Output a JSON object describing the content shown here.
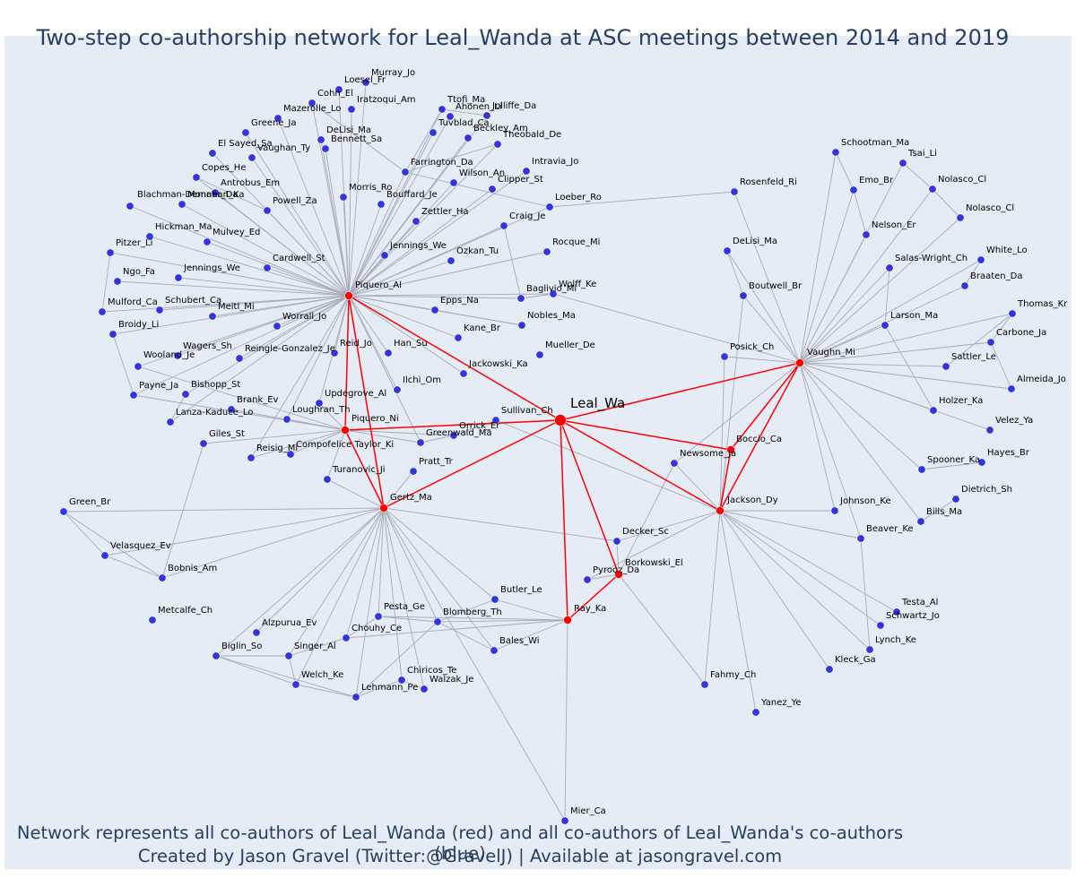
{
  "title": "Two-step co-authorship network for Leal_Wanda at ASC meetings between 2014 and 2019",
  "caption": {
    "line1": "Network represents all co-authors of Leal_Wanda (red) and all co-authors of Leal_Wanda's co-authors (blue)",
    "line2": "Created by Jason Gravel (Twitter:@GravelJ) | Available at jasongravel.com"
  },
  "colors": {
    "background": "#e5ecf6",
    "first_degree": "#ff0000",
    "second_degree": "#3333e0",
    "ego_edge": "#ff0000",
    "other_edge": "#a8aab8",
    "text": "#2a3f5f"
  },
  "network": {
    "ego": "Leal_Wa",
    "first_degree": [
      "Piquero_Al",
      "Piquero_Ni",
      "Gertz_Ma",
      "Vaughn_Mi",
      "Jackson_Dy",
      "Boccio_Ca",
      "Borkowski_El",
      "Ray_Ka"
    ],
    "nodes": [
      {
        "name": "Leal_Wa",
        "group": "ego"
      },
      {
        "name": "Piquero_Al",
        "group": "red"
      },
      {
        "name": "Piquero_Ni",
        "group": "red"
      },
      {
        "name": "Gertz_Ma",
        "group": "red"
      },
      {
        "name": "Vaughn_Mi",
        "group": "red"
      },
      {
        "name": "Jackson_Dy",
        "group": "red"
      },
      {
        "name": "Boccio_Ca",
        "group": "red"
      },
      {
        "name": "Borkowski_El",
        "group": "red"
      },
      {
        "name": "Ray_Ka",
        "group": "red"
      },
      {
        "name": "Murray_Jo",
        "group": "blue"
      },
      {
        "name": "Loesel_Fr",
        "group": "blue"
      },
      {
        "name": "Cohn_El",
        "group": "blue"
      },
      {
        "name": "Iratzoqui_Am",
        "group": "blue"
      },
      {
        "name": "Ttofi_Ma",
        "group": "blue"
      },
      {
        "name": "Ahonen_Li",
        "group": "blue"
      },
      {
        "name": "Jolliffe_Da",
        "group": "blue"
      },
      {
        "name": "Mazerolle_Lo",
        "group": "blue"
      },
      {
        "name": "Greene_Ja",
        "group": "blue"
      },
      {
        "name": "DeLisi_Ma",
        "group": "blue"
      },
      {
        "name": "Tuvblad_Ca",
        "group": "blue"
      },
      {
        "name": "Beckley_Am",
        "group": "blue"
      },
      {
        "name": "Theobald_De",
        "group": "blue"
      },
      {
        "name": "El Sayed_Sa",
        "group": "blue"
      },
      {
        "name": "Bennett_Sa",
        "group": "blue"
      },
      {
        "name": "Vaughan_Ty",
        "group": "blue"
      },
      {
        "name": "Intravia_Jo",
        "group": "blue"
      },
      {
        "name": "Copes_He",
        "group": "blue"
      },
      {
        "name": "Farrington_Da",
        "group": "blue"
      },
      {
        "name": "Wilson_An",
        "group": "blue"
      },
      {
        "name": "Antrobus_Em",
        "group": "blue"
      },
      {
        "name": "Clipper_St",
        "group": "blue"
      },
      {
        "name": "Morris_Ro",
        "group": "blue"
      },
      {
        "name": "Monahan_Ka",
        "group": "blue"
      },
      {
        "name": "Loeber_Ro",
        "group": "blue"
      },
      {
        "name": "Bouffard_Je",
        "group": "blue"
      },
      {
        "name": "Blachman-Demner_Da",
        "group": "blue"
      },
      {
        "name": "Powell_Za",
        "group": "blue"
      },
      {
        "name": "Zettler_Ha",
        "group": "blue"
      },
      {
        "name": "Craig_Je",
        "group": "blue"
      },
      {
        "name": "Hickman_Ma",
        "group": "blue"
      },
      {
        "name": "Mulvey_Ed",
        "group": "blue"
      },
      {
        "name": "Pitzer_Li",
        "group": "blue"
      },
      {
        "name": "Jennings_We",
        "group": "blue"
      },
      {
        "name": "Rocque_Mi",
        "group": "blue"
      },
      {
        "name": "Ozkan_Tu",
        "group": "blue"
      },
      {
        "name": "Cardwell_St",
        "group": "blue"
      },
      {
        "name": "Ngo_Fa",
        "group": "blue"
      },
      {
        "name": "Jennings_We ",
        "group": "blue"
      },
      {
        "name": "Wolff_Ke",
        "group": "blue"
      },
      {
        "name": "Schubert_Ca",
        "group": "blue"
      },
      {
        "name": "Baglivio_Mi",
        "group": "blue"
      },
      {
        "name": "Mulford_Ca",
        "group": "blue"
      },
      {
        "name": "Epps_Na",
        "group": "blue"
      },
      {
        "name": "Meitl_Mi",
        "group": "blue"
      },
      {
        "name": "Nobles_Ma",
        "group": "blue"
      },
      {
        "name": "Broidy_Li",
        "group": "blue"
      },
      {
        "name": "Worrall_Jo",
        "group": "blue"
      },
      {
        "name": "Kane_Br",
        "group": "blue"
      },
      {
        "name": "Reid_Jo",
        "group": "blue"
      },
      {
        "name": "Han_Su",
        "group": "blue"
      },
      {
        "name": "Wagers_Sh",
        "group": "blue"
      },
      {
        "name": "Reingle-Gonzalez_Je",
        "group": "blue"
      },
      {
        "name": "Mueller_De",
        "group": "blue"
      },
      {
        "name": "Wooland_Je",
        "group": "blue"
      },
      {
        "name": "Jackowski_Ka",
        "group": "blue"
      },
      {
        "name": "Payne_Ja",
        "group": "blue"
      },
      {
        "name": "Bishopp_St",
        "group": "blue"
      },
      {
        "name": "Ilchi_Om",
        "group": "blue"
      },
      {
        "name": "Brank_Ev",
        "group": "blue"
      },
      {
        "name": "Updegrove_Al",
        "group": "blue"
      },
      {
        "name": "Lanza-Kaduce_Lo",
        "group": "blue"
      },
      {
        "name": "Loughran_Th",
        "group": "blue"
      },
      {
        "name": "Sullivan_Ch",
        "group": "blue"
      },
      {
        "name": "Giles_St",
        "group": "blue"
      },
      {
        "name": "Orrick_Er",
        "group": "blue"
      },
      {
        "name": "Greenwald_Ma",
        "group": "blue"
      },
      {
        "name": "Compofelice Taylor_Ki",
        "group": "blue"
      },
      {
        "name": "Reisig_Mi",
        "group": "blue"
      },
      {
        "name": "Pratt_Tr",
        "group": "blue"
      },
      {
        "name": "Turanovic_Ji",
        "group": "blue"
      },
      {
        "name": "Green_Br",
        "group": "blue"
      },
      {
        "name": "Velasquez_Ev",
        "group": "blue"
      },
      {
        "name": "Bobnis_Am",
        "group": "blue"
      },
      {
        "name": "Metcalfe_Ch",
        "group": "blue"
      },
      {
        "name": "Decker_Sc",
        "group": "blue"
      },
      {
        "name": "Pyrooz_Da",
        "group": "blue"
      },
      {
        "name": "Butler_Le",
        "group": "blue"
      },
      {
        "name": "Pesta_Ge",
        "group": "blue"
      },
      {
        "name": "Alzpurua_Ev",
        "group": "blue"
      },
      {
        "name": "Blomberg_Th",
        "group": "blue"
      },
      {
        "name": "Chouhy_Ce",
        "group": "blue"
      },
      {
        "name": "Biglin_So",
        "group": "blue"
      },
      {
        "name": "Singer_Al",
        "group": "blue"
      },
      {
        "name": "Bales_Wi",
        "group": "blue"
      },
      {
        "name": "Chiricos_Te",
        "group": "blue"
      },
      {
        "name": "Walzak_Je",
        "group": "blue"
      },
      {
        "name": "Welch_Ke",
        "group": "blue"
      },
      {
        "name": "Lehmann_Pe",
        "group": "blue"
      },
      {
        "name": "Mier_Ca",
        "group": "blue"
      },
      {
        "name": "Fahmy_Ch",
        "group": "blue"
      },
      {
        "name": "Kleck_Ga",
        "group": "blue"
      },
      {
        "name": "Yanez_Ye",
        "group": "blue"
      },
      {
        "name": "Lynch_Ke",
        "group": "blue"
      },
      {
        "name": "Schwartz_Jo",
        "group": "blue"
      },
      {
        "name": "Testa_Al",
        "group": "blue"
      },
      {
        "name": "Beaver_Ke",
        "group": "blue"
      },
      {
        "name": "Johnson_Ke",
        "group": "blue"
      },
      {
        "name": "Bills_Ma",
        "group": "blue"
      },
      {
        "name": "Dietrich_Sh",
        "group": "blue"
      },
      {
        "name": "Spooner_Ka",
        "group": "blue"
      },
      {
        "name": "Hayes_Br",
        "group": "blue"
      },
      {
        "name": "Velez_Ya",
        "group": "blue"
      },
      {
        "name": "Holzer_Ka",
        "group": "blue"
      },
      {
        "name": "Almeida_Jo",
        "group": "blue"
      },
      {
        "name": "Sattler_Le",
        "group": "blue"
      },
      {
        "name": "Carbone_Ja",
        "group": "blue"
      },
      {
        "name": "Thomas_Kr",
        "group": "blue"
      },
      {
        "name": "Larson_Ma",
        "group": "blue"
      },
      {
        "name": "Braaten_Da",
        "group": "blue"
      },
      {
        "name": "White_Lo",
        "group": "blue"
      },
      {
        "name": "Salas-Wright_Ch",
        "group": "blue"
      },
      {
        "name": "Nolasco_Cl",
        "group": "blue"
      },
      {
        "name": "Nolasco_Cl ",
        "group": "blue"
      },
      {
        "name": "Tsai_Li",
        "group": "blue"
      },
      {
        "name": "Emo_Br",
        "group": "blue"
      },
      {
        "name": "Schootman_Ma",
        "group": "blue"
      },
      {
        "name": "Rosenfeld_Ri",
        "group": "blue"
      },
      {
        "name": "Nelson_Er",
        "group": "blue"
      },
      {
        "name": "DeLisi_Ma ",
        "group": "blue"
      },
      {
        "name": "Boutwell_Br",
        "group": "blue"
      },
      {
        "name": "Posick_Ch",
        "group": "blue"
      },
      {
        "name": "Newsome_Ja",
        "group": "blue"
      }
    ]
  }
}
